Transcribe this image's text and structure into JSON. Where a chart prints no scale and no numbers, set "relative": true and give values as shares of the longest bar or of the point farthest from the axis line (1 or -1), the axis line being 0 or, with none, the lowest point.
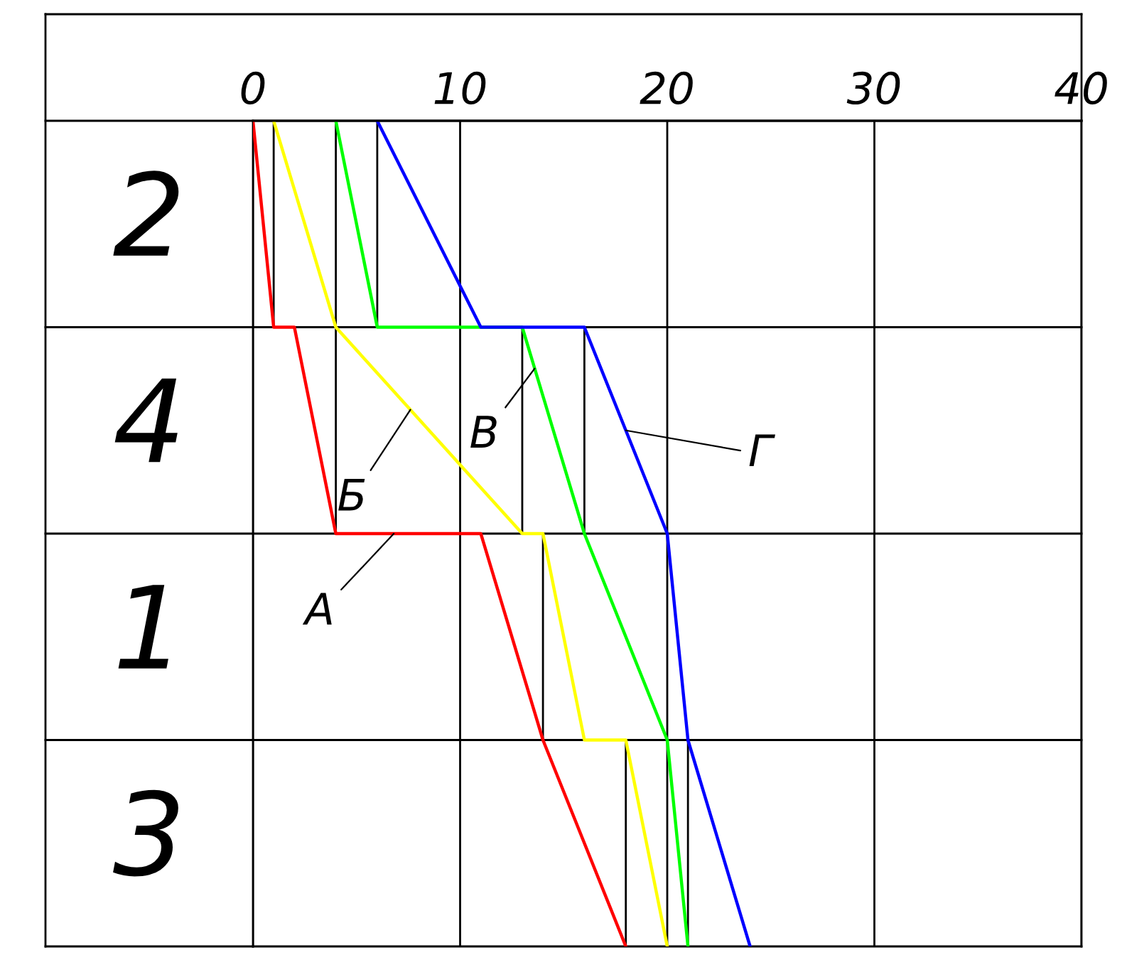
{
  "chart_data": {
    "type": "line",
    "relative": true,
    "xlim": [
      0,
      40
    ],
    "xticks": [
      0,
      10,
      20,
      30,
      40
    ],
    "grid": "x",
    "marker": "none",
    "line_style": "solid",
    "ref_lines": [
      {
        "axis": "y",
        "value": -0.25,
        "color": "#000000"
      },
      {
        "axis": "y",
        "value": -0.5,
        "color": "#000000"
      },
      {
        "axis": "y",
        "value": -0.75,
        "color": "#000000"
      }
    ],
    "series": [
      {
        "color": "#000000",
        "x": [
          1,
          1,
          null,
          4,
          4,
          null,
          6,
          6,
          null,
          13,
          13,
          null,
          16,
          16,
          null,
          14,
          14,
          null,
          18,
          18,
          null,
          21,
          21
        ],
        "values": [
          0,
          -0.25,
          null,
          0,
          -0.5,
          null,
          0,
          -0.25,
          null,
          -0.25,
          -0.5,
          null,
          -0.25,
          -0.5,
          null,
          -0.5,
          -0.75,
          null,
          -0.75,
          -1,
          null,
          -0.75,
          -1
        ]
      },
      {
        "color": "#ff0000",
        "x": [
          0,
          1,
          2,
          4,
          11,
          14,
          18
        ],
        "values": [
          0,
          -0.25,
          -0.25,
          -0.5,
          -0.5,
          -0.75,
          -1
        ]
      },
      {
        "color": "#ffff00",
        "x": [
          1,
          4,
          13,
          14,
          16,
          18,
          20
        ],
        "values": [
          0,
          -0.25,
          -0.5,
          -0.5,
          -0.75,
          -0.75,
          -1
        ]
      },
      {
        "color": "#00ff00",
        "x": [
          4,
          6,
          13,
          16,
          20,
          21
        ],
        "values": [
          0,
          -0.25,
          -0.25,
          -0.5,
          -0.75,
          -1
        ]
      },
      {
        "color": "#0000ff",
        "x": [
          6,
          11,
          16,
          20,
          21,
          24
        ],
        "values": [
          0,
          -0.25,
          -0.25,
          -0.5,
          -0.75,
          -1
        ]
      }
    ],
    "annotations": [
      "2",
      "4",
      "1",
      "3",
      {
        "text": "А",
        "x": 6.8,
        "y": -0.5
      },
      {
        "text": "Б",
        "x": 7.6,
        "y": -0.35
      },
      {
        "text": "В",
        "x": 13.6,
        "y": -0.3
      },
      {
        "text": "Г",
        "x": 18,
        "y": -0.375
      }
    ]
  }
}
